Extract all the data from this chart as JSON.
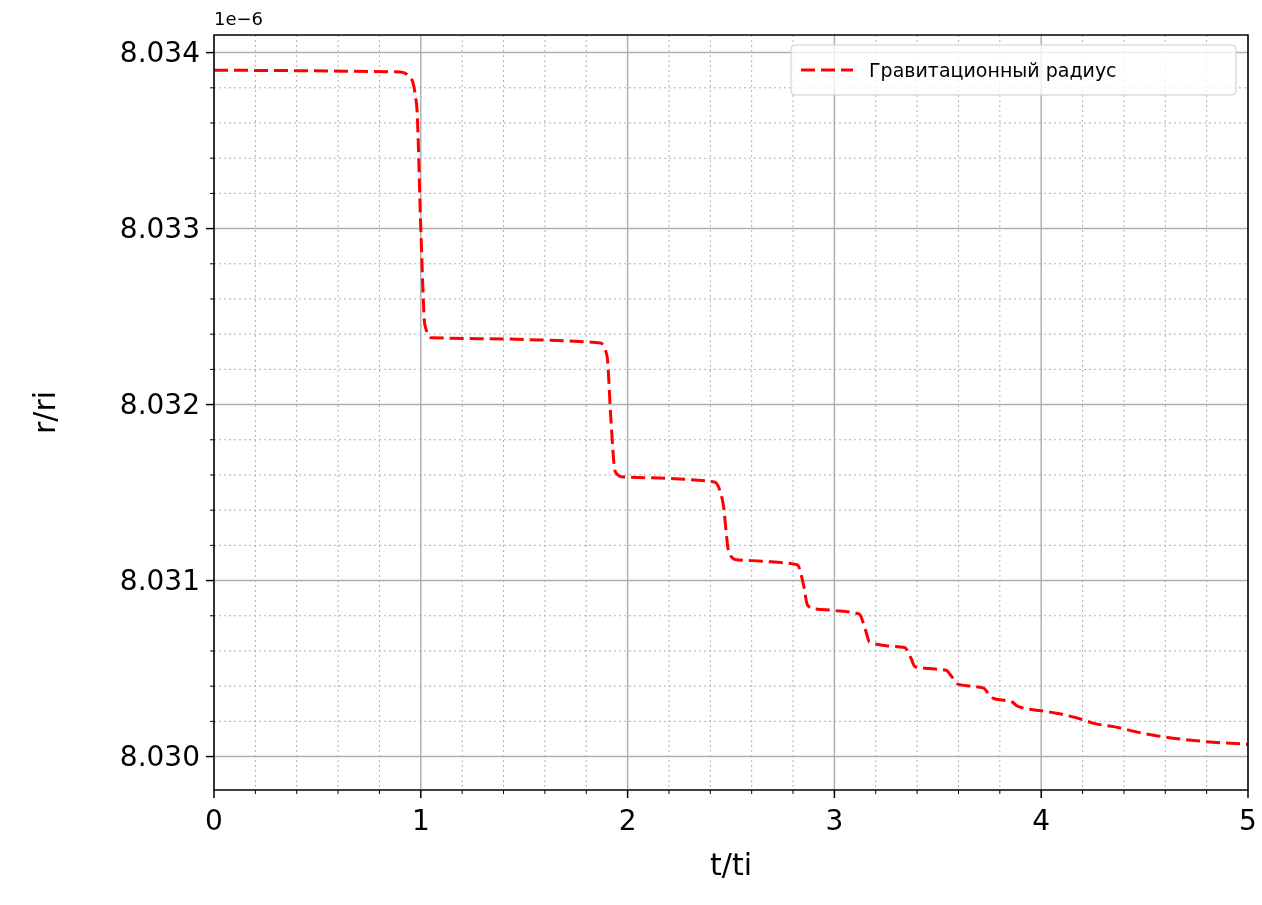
{
  "chart_data": {
    "type": "line",
    "xlabel": "t/ti",
    "ylabel": "r/ri",
    "annotations": [
      "1e−6"
    ],
    "x": [
      0,
      0.9,
      0.95,
      0.98,
      1.0,
      1.02,
      1.05,
      1.5,
      1.87,
      1.9,
      1.92,
      1.94,
      1.97,
      2.2,
      2.42,
      2.46,
      2.49,
      2.52,
      2.65,
      2.82,
      2.85,
      2.87,
      2.9,
      3.0,
      3.12,
      3.15,
      3.17,
      3.25,
      3.34,
      3.37,
      3.39,
      3.46,
      3.54,
      3.57,
      3.6,
      3.66,
      3.72,
      3.75,
      3.77,
      3.82,
      3.86,
      3.88,
      3.9,
      4.0,
      4.1,
      4.2,
      4.25,
      4.35,
      4.5,
      4.75,
      5.0
    ],
    "series": [
      {
        "name": "Гравитационный радиус",
        "color": "#ff0000",
        "values": [
          8.0339,
          8.03389,
          8.03386,
          8.0337,
          8.033,
          8.03245,
          8.03238,
          8.03237,
          8.03235,
          8.03228,
          8.0319,
          8.03162,
          8.03159,
          8.03158,
          8.03156,
          8.03145,
          8.03116,
          8.03112,
          8.03111,
          8.03109,
          8.03098,
          8.03086,
          8.03084,
          8.03083,
          8.03081,
          8.03072,
          8.03065,
          8.03063,
          8.03062,
          8.03056,
          8.03051,
          8.0305,
          8.03049,
          8.03045,
          8.03041,
          8.0304,
          8.03039,
          8.03035,
          8.03033,
          8.03032,
          8.03031,
          8.03029,
          8.03028,
          8.03026,
          8.03024,
          8.03021,
          8.03019,
          8.03017,
          8.03013,
          8.03009,
          8.03007
        ]
      }
    ],
    "xlim": [
      0,
      5
    ],
    "xticks": [
      0,
      1,
      2,
      3,
      4,
      5
    ],
    "ylim": [
      8.02981,
      8.0341
    ],
    "yticks": [
      {
        "value": 8.03,
        "label": "8.030"
      },
      8.031,
      8.032,
      8.033,
      8.034
    ],
    "grid": true,
    "legend": "top right",
    "line_style": "dashed",
    "marker": "none"
  }
}
